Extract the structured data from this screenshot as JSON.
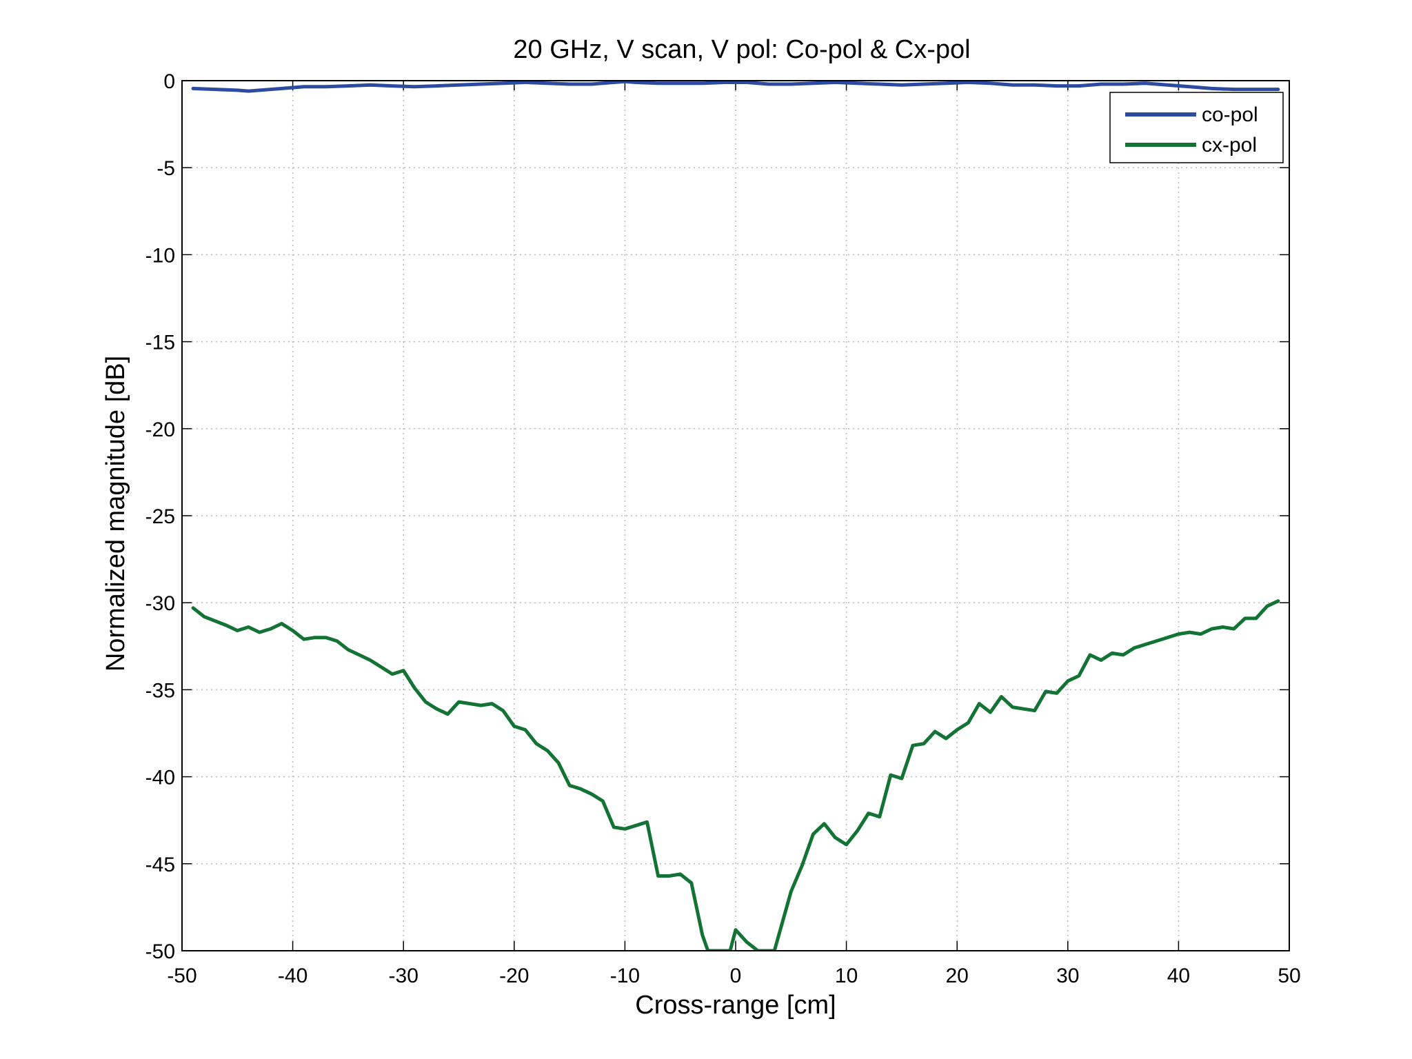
{
  "chart_data": {
    "type": "line",
    "title": "20 GHz, V scan, V pol: Co-pol & Cx-pol",
    "xlabel": "Cross-range [cm]",
    "ylabel": "Normalized magnitude [dB]",
    "xlim": [
      -50,
      50
    ],
    "ylim": [
      -50,
      0
    ],
    "xticks": [
      -50,
      -40,
      -30,
      -20,
      -10,
      0,
      10,
      20,
      30,
      40,
      50
    ],
    "yticks": [
      0,
      -5,
      -10,
      -15,
      -20,
      -25,
      -30,
      -35,
      -40,
      -45,
      -50
    ],
    "grid": true,
    "legend_position": "top-right",
    "series": [
      {
        "name": "co-pol",
        "color": "#2b4aa0",
        "x": [
          -49,
          -47,
          -45,
          -44,
          -43,
          -41,
          -39,
          -37,
          -35,
          -33,
          -31,
          -29,
          -27,
          -25,
          -23,
          -21,
          -19,
          -17,
          -15,
          -13,
          -11,
          -10,
          -9,
          -7,
          -5,
          -3,
          -1,
          1,
          3,
          5,
          7,
          9,
          11,
          13,
          15,
          17,
          19,
          21,
          23,
          25,
          27,
          29,
          31,
          33,
          35,
          37,
          39,
          41,
          43,
          45,
          47,
          49
        ],
        "y": [
          -0.45,
          -0.5,
          -0.55,
          -0.6,
          -0.55,
          -0.45,
          -0.35,
          -0.35,
          -0.3,
          -0.25,
          -0.3,
          -0.35,
          -0.3,
          -0.25,
          -0.2,
          -0.15,
          -0.1,
          -0.15,
          -0.2,
          -0.2,
          -0.1,
          -0.05,
          -0.1,
          -0.15,
          -0.15,
          -0.15,
          -0.1,
          -0.1,
          -0.2,
          -0.2,
          -0.15,
          -0.1,
          -0.15,
          -0.2,
          -0.25,
          -0.2,
          -0.15,
          -0.1,
          -0.15,
          -0.25,
          -0.25,
          -0.3,
          -0.3,
          -0.2,
          -0.2,
          -0.15,
          -0.25,
          -0.35,
          -0.45,
          -0.5,
          -0.5,
          -0.5
        ]
      },
      {
        "name": "cx-pol",
        "color": "#127334",
        "x": [
          -49,
          -48,
          -46,
          -45,
          -44,
          -43,
          -42,
          -41,
          -40,
          -39,
          -38,
          -37,
          -36,
          -35,
          -34,
          -33,
          -32,
          -31,
          -30,
          -29,
          -28,
          -27,
          -26,
          -25,
          -24,
          -23,
          -22,
          -21,
          -20,
          -19,
          -18,
          -17,
          -16,
          -15,
          -14,
          -13,
          -12,
          -11,
          -10,
          -9,
          -8,
          -7,
          -6,
          -5,
          -4,
          -3,
          -2.5,
          -0.5,
          0,
          1,
          2,
          3.5,
          5,
          6,
          7,
          8,
          9,
          10,
          11,
          12,
          13,
          14,
          15,
          16,
          17,
          18,
          19,
          20,
          21,
          22,
          23,
          24,
          25,
          26,
          27,
          28,
          29,
          30,
          31,
          32,
          33,
          34,
          35,
          36,
          37,
          38,
          39,
          40,
          41,
          42,
          43,
          44,
          45,
          46,
          47,
          48,
          49
        ],
        "y": [
          -30.3,
          -30.8,
          -31.3,
          -31.6,
          -31.4,
          -31.7,
          -31.5,
          -31.2,
          -31.6,
          -32.1,
          -32.0,
          -32.0,
          -32.2,
          -32.7,
          -33.0,
          -33.3,
          -33.7,
          -34.1,
          -33.9,
          -34.9,
          -35.7,
          -36.1,
          -36.4,
          -35.7,
          -35.8,
          -35.9,
          -35.8,
          -36.2,
          -37.1,
          -37.3,
          -38.1,
          -38.5,
          -39.2,
          -40.5,
          -40.7,
          -41.0,
          -41.4,
          -42.9,
          -43.0,
          -42.8,
          -42.6,
          -45.7,
          -45.7,
          -45.6,
          -46.1,
          -49.1,
          -50,
          -50,
          -48.8,
          -49.5,
          -50,
          -50,
          -46.6,
          -45.1,
          -43.3,
          -42.7,
          -43.5,
          -43.9,
          -43.1,
          -42.1,
          -42.3,
          -39.9,
          -40.1,
          -38.2,
          -38.1,
          -37.4,
          -37.8,
          -37.3,
          -36.9,
          -35.8,
          -36.3,
          -35.4,
          -36.0,
          -36.1,
          -36.2,
          -35.1,
          -35.2,
          -34.5,
          -34.2,
          -33.0,
          -33.3,
          -32.9,
          -33.0,
          -32.6,
          -32.4,
          -32.2,
          -32.0,
          -31.8,
          -31.7,
          -31.8,
          -31.5,
          -31.4,
          -31.5,
          -30.9,
          -30.9,
          -30.2,
          -29.9
        ]
      }
    ]
  }
}
